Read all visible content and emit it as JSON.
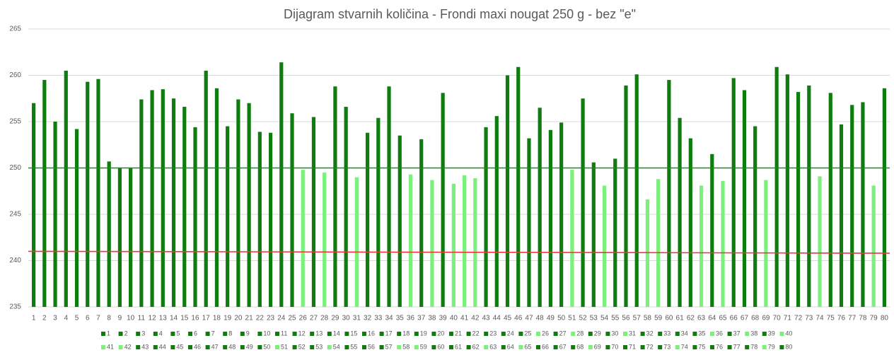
{
  "chart_data": {
    "type": "bar",
    "title": "Dijagram stvarnih količina - Frondi maxi nougat 250 g - bez \"e\"",
    "categories": [
      "1",
      "2",
      "3",
      "4",
      "5",
      "6",
      "7",
      "8",
      "9",
      "10",
      "11",
      "12",
      "13",
      "14",
      "15",
      "16",
      "17",
      "18",
      "19",
      "20",
      "21",
      "22",
      "23",
      "24",
      "25",
      "26",
      "27",
      "28",
      "29",
      "30",
      "31",
      "32",
      "33",
      "34",
      "35",
      "36",
      "37",
      "38",
      "39",
      "40",
      "41",
      "42",
      "43",
      "44",
      "45",
      "46",
      "47",
      "48",
      "49",
      "50",
      "51",
      "52",
      "53",
      "54",
      "55",
      "56",
      "57",
      "58",
      "59",
      "60",
      "61",
      "62",
      "63",
      "64",
      "65",
      "66",
      "67",
      "68",
      "69",
      "70",
      "71",
      "72",
      "73",
      "74",
      "75",
      "76",
      "77",
      "78",
      "79",
      "80"
    ],
    "values": [
      257.0,
      259.5,
      255.0,
      260.5,
      254.2,
      259.3,
      259.6,
      250.7,
      250.0,
      250.0,
      257.4,
      258.4,
      258.5,
      257.5,
      256.6,
      254.4,
      260.5,
      258.6,
      254.5,
      257.4,
      257.0,
      253.9,
      253.8,
      261.4,
      255.9,
      249.8,
      255.5,
      249.5,
      258.8,
      256.6,
      249.0,
      253.8,
      255.4,
      258.8,
      253.5,
      249.3,
      253.1,
      248.7,
      258.1,
      248.3,
      249.2,
      248.9,
      254.4,
      255.6,
      260.0,
      260.9,
      253.2,
      256.5,
      254.1,
      254.9,
      249.8,
      257.5,
      250.6,
      248.1,
      251.0,
      258.9,
      260.1,
      246.6,
      248.8,
      259.5,
      255.4,
      253.2,
      248.1,
      251.5,
      248.6,
      259.7,
      258.4,
      254.5,
      248.7,
      260.9,
      260.1,
      258.2,
      258.9,
      249.1,
      258.1,
      254.7,
      256.8,
      257.1,
      248.1,
      258.6
    ],
    "colors": [
      "#0e7c0e",
      "#0e7c0e",
      "#0e7c0e",
      "#0e7c0e",
      "#0e7c0e",
      "#0e7c0e",
      "#0e7c0e",
      "#0e7c0e",
      "#0e7c0e",
      "#0e7c0e",
      "#0e7c0e",
      "#0e7c0e",
      "#0e7c0e",
      "#0e7c0e",
      "#0e7c0e",
      "#0e7c0e",
      "#0e7c0e",
      "#0e7c0e",
      "#0e7c0e",
      "#0e7c0e",
      "#0e7c0e",
      "#0e7c0e",
      "#0e7c0e",
      "#0e7c0e",
      "#0e7c0e",
      "#7cf07c",
      "#0e7c0e",
      "#7cf07c",
      "#0e7c0e",
      "#0e7c0e",
      "#7cf07c",
      "#0e7c0e",
      "#0e7c0e",
      "#0e7c0e",
      "#0e7c0e",
      "#7cf07c",
      "#0e7c0e",
      "#7cf07c",
      "#0e7c0e",
      "#7cf07c",
      "#7cf07c",
      "#7cf07c",
      "#0e7c0e",
      "#0e7c0e",
      "#0e7c0e",
      "#0e7c0e",
      "#0e7c0e",
      "#0e7c0e",
      "#0e7c0e",
      "#0e7c0e",
      "#7cf07c",
      "#0e7c0e",
      "#0e7c0e",
      "#7cf07c",
      "#0e7c0e",
      "#0e7c0e",
      "#0e7c0e",
      "#7cf07c",
      "#7cf07c",
      "#0e7c0e",
      "#0e7c0e",
      "#0e7c0e",
      "#7cf07c",
      "#0e7c0e",
      "#7cf07c",
      "#0e7c0e",
      "#0e7c0e",
      "#0e7c0e",
      "#7cf07c",
      "#0e7c0e",
      "#0e7c0e",
      "#0e7c0e",
      "#0e7c0e",
      "#7cf07c",
      "#0e7c0e",
      "#0e7c0e",
      "#0e7c0e",
      "#0e7c0e",
      "#7cf07c",
      "#0e7c0e"
    ],
    "reference_lines": [
      {
        "color": "#1a8a1a",
        "values": [
          250,
          250
        ]
      },
      {
        "color": "#e83a3a",
        "values": [
          241,
          240.8
        ]
      }
    ],
    "ylim": [
      235,
      265
    ],
    "yticks": [
      235,
      240,
      245,
      250,
      255,
      260,
      265
    ],
    "grid": true
  }
}
